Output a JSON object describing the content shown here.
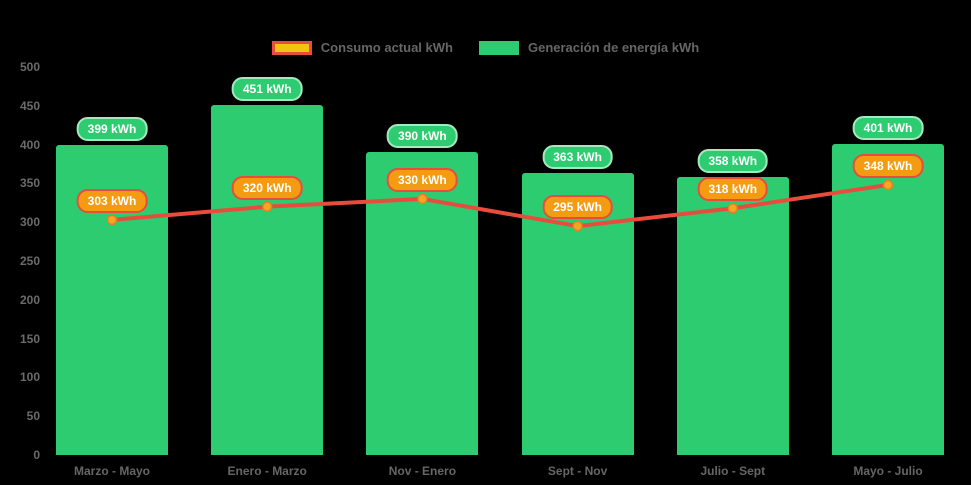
{
  "colors": {
    "background": "#000000",
    "bar": "#2ecc71",
    "line": "#e74c3c",
    "marker_fill": "#f5a623",
    "marker_stroke": "#e67e22",
    "bar_badge_bg": "#2ecc71",
    "bar_badge_border": "#a3e9c0",
    "line_badge_bg": "#f39c12",
    "line_badge_border": "#e74c3c",
    "axis_text": "#6b6b6b",
    "legend_text": "#666666",
    "legend_consumo_fill": "#f1c40f",
    "legend_consumo_border": "#e74c3c",
    "legend_generacion_fill": "#2ecc71"
  },
  "legend": {
    "items": [
      {
        "id": "consumo",
        "label": "Consumo actual kWh"
      },
      {
        "id": "generacion",
        "label": "Generación de energía kWh"
      }
    ]
  },
  "chart_data": {
    "type": "bar",
    "title": "",
    "xlabel": "",
    "ylabel": "",
    "categories": [
      "Marzo - Mayo",
      "Enero - Marzo",
      "Nov - Enero",
      "Sept - Nov",
      "Julio - Sept",
      "Mayo - Julio"
    ],
    "series": [
      {
        "name": "Generación de energía kWh",
        "type": "bar",
        "color": "#2ecc71",
        "values": [
          399,
          451,
          390,
          363,
          358,
          401
        ],
        "data_labels": [
          "399 kWh",
          "451 kWh",
          "390 kWh",
          "363 kWh",
          "358 kWh",
          "401 kWh"
        ]
      },
      {
        "name": "Consumo actual kWh",
        "type": "line",
        "color": "#e74c3c",
        "values": [
          303,
          320,
          330,
          295,
          318,
          348
        ],
        "data_labels": [
          "303 kWh",
          "320 kWh",
          "330 kWh",
          "295 kWh",
          "318 kWh",
          "348 kWh"
        ]
      }
    ],
    "unit": "kWh",
    "ylim": [
      0,
      500
    ],
    "yticks": [
      0,
      50,
      100,
      150,
      200,
      250,
      300,
      350,
      400,
      450,
      500
    ],
    "grid": false,
    "legend_position": "top"
  }
}
